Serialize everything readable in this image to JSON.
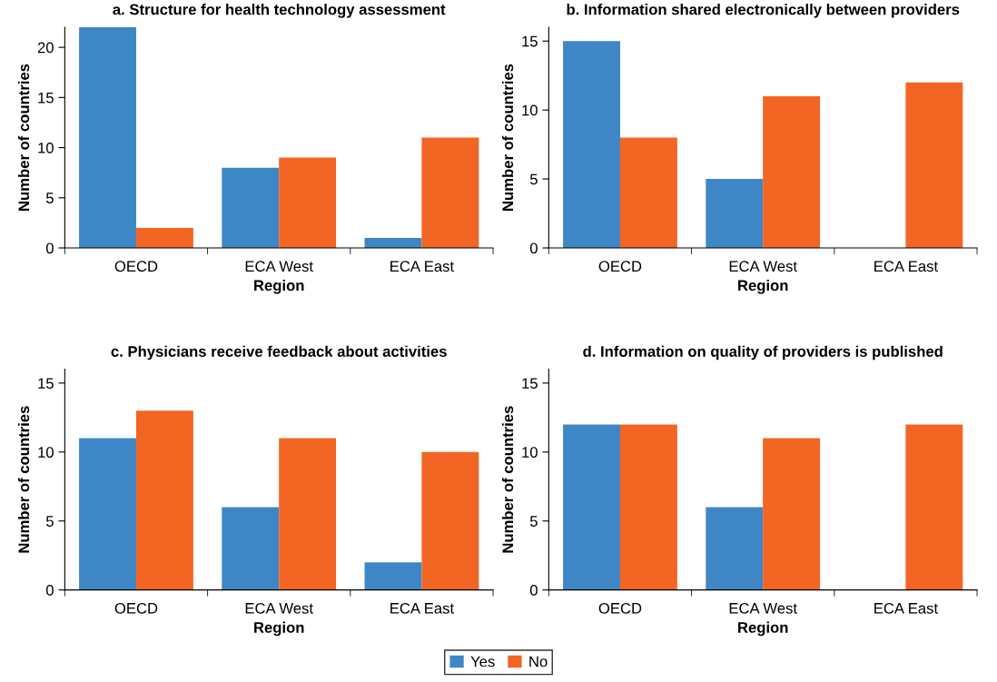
{
  "chart_data": [
    {
      "type": "bar",
      "title": "a. Structure for health technology assessment",
      "xlabel": "Region",
      "ylabel": "Number of countries",
      "categories": [
        "OECD",
        "ECA West",
        "ECA East"
      ],
      "ylim": [
        0,
        22
      ],
      "yticks": [
        0,
        5,
        10,
        15,
        20
      ],
      "grid": false,
      "legend": "bottom",
      "series": [
        {
          "name": "Yes",
          "color": "#3f86c6",
          "values": [
            22,
            8,
            1
          ]
        },
        {
          "name": "No",
          "color": "#f26522",
          "values": [
            2,
            9,
            11
          ]
        }
      ]
    },
    {
      "type": "bar",
      "title": "b. Information shared electronically between providers",
      "xlabel": "Region",
      "ylabel": "Number of countries",
      "categories": [
        "OECD",
        "ECA West",
        "ECA East"
      ],
      "ylim": [
        0,
        16
      ],
      "yticks": [
        0,
        5,
        10,
        15
      ],
      "grid": false,
      "series": [
        {
          "color": "#3f86c6",
          "values": [
            15,
            5,
            0
          ]
        },
        {
          "color": "#f26522",
          "values": [
            8,
            11,
            12
          ]
        }
      ]
    },
    {
      "type": "bar",
      "title": "c. Physicians receive feedback about activities",
      "xlabel": "Region",
      "ylabel": "Number of countries",
      "categories": [
        "OECD",
        "ECA West",
        "ECA East"
      ],
      "ylim": [
        0,
        16
      ],
      "yticks": [
        0,
        5,
        10,
        15
      ],
      "grid": false,
      "series": [
        {
          "color": "#3f86c6",
          "values": [
            11,
            6,
            2
          ]
        },
        {
          "color": "#f26522",
          "values": [
            13,
            11,
            10
          ]
        }
      ]
    },
    {
      "type": "bar",
      "title": "d. Information on quality of providers is published",
      "xlabel": "Region",
      "ylabel": "Number of countries",
      "categories": [
        "OECD",
        "ECA West",
        "ECA East"
      ],
      "ylim": [
        0,
        16
      ],
      "yticks": [
        0,
        5,
        10,
        15
      ],
      "grid": false,
      "series": [
        {
          "color": "#3f86c6",
          "values": [
            12,
            6,
            0
          ]
        },
        {
          "color": "#f26522",
          "values": [
            12,
            11,
            12
          ]
        }
      ]
    }
  ]
}
